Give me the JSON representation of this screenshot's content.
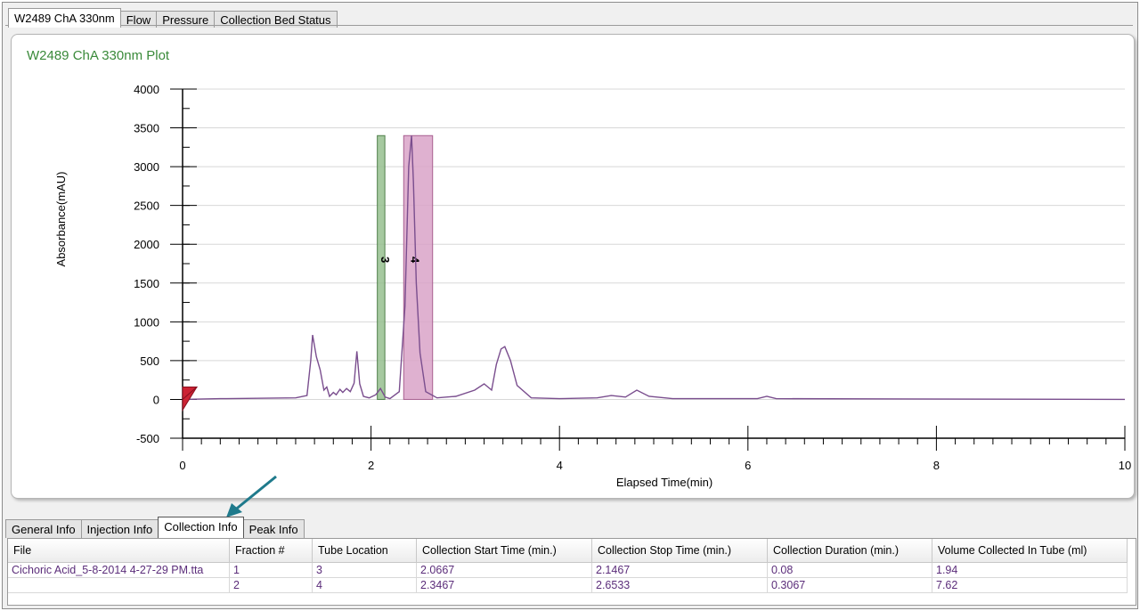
{
  "top_tabs": [
    {
      "label": "W2489 ChA 330nm",
      "active": true
    },
    {
      "label": "Flow",
      "active": false
    },
    {
      "label": "Pressure",
      "active": false
    },
    {
      "label": "Collection Bed Status",
      "active": false
    }
  ],
  "plot": {
    "title": "W2489 ChA 330nm Plot"
  },
  "chart_data": {
    "type": "line",
    "title": "W2489 ChA 330nm Plot",
    "xlabel": "Elapsed Time(min)",
    "ylabel": "Absorbance(mAU)",
    "xlim": [
      0,
      10
    ],
    "ylim": [
      -500,
      4000
    ],
    "x_ticks": [
      "0",
      "2",
      "4",
      "6",
      "8",
      "10"
    ],
    "y_ticks": [
      "4000",
      "3500",
      "3000",
      "2500",
      "2000",
      "1500",
      "1000",
      "500",
      "0",
      "-500"
    ],
    "grid": true,
    "line_color": "#7a4e8e",
    "series": [
      {
        "x": [
          0,
          0.4,
          1.2,
          1.32,
          1.36,
          1.38,
          1.42,
          1.46,
          1.5,
          1.53,
          1.56,
          1.6,
          1.63,
          1.67,
          1.7,
          1.74,
          1.78,
          1.82,
          1.85,
          1.88,
          1.92,
          1.98,
          2.05,
          2.1,
          2.15,
          2.2,
          2.3,
          2.36,
          2.4,
          2.43,
          2.45,
          2.48,
          2.52,
          2.58,
          2.7,
          2.9,
          3.1,
          3.2,
          3.28,
          3.33,
          3.38,
          3.42,
          3.48,
          3.55,
          3.7,
          4.0,
          4.4,
          4.55,
          4.7,
          4.82,
          4.95,
          5.2,
          6.1,
          6.2,
          6.3,
          10.0
        ],
        "y": [
          0,
          10,
          20,
          50,
          500,
          830,
          550,
          380,
          120,
          160,
          40,
          90,
          60,
          130,
          90,
          140,
          100,
          210,
          620,
          200,
          40,
          20,
          60,
          140,
          30,
          10,
          100,
          1200,
          3000,
          3400,
          2800,
          1500,
          600,
          100,
          20,
          40,
          120,
          200,
          120,
          450,
          650,
          680,
          500,
          180,
          20,
          10,
          20,
          50,
          30,
          120,
          40,
          10,
          10,
          40,
          10,
          0
        ]
      }
    ],
    "fractions": [
      {
        "label": "3",
        "start": 2.0667,
        "stop": 2.1467,
        "height": 3400,
        "color": "#96c08f"
      },
      {
        "label": "4",
        "start": 2.3467,
        "stop": 2.6533,
        "height": 3400,
        "color": "#d9a3c8"
      }
    ]
  },
  "bottom_tabs": [
    {
      "label": "General Info",
      "active": false
    },
    {
      "label": "Injection Info",
      "active": false
    },
    {
      "label": "Collection Info",
      "active": true
    },
    {
      "label": "Peak Info",
      "active": false
    }
  ],
  "table": {
    "columns": [
      "File",
      "Fraction #",
      "Tube Location",
      "Collection Start Time (min.)",
      "Collection Stop Time (min.)",
      "Collection Duration (min.)",
      "Volume Collected In Tube (ml)"
    ],
    "rows": [
      [
        "Cichoric Acid_5-8-2014 4-27-29 PM.tta",
        "1",
        "3",
        "2.0667",
        "2.1467",
        "0.08",
        "1.94"
      ],
      [
        "",
        "2",
        "4",
        "2.3467",
        "2.6533",
        "0.3067",
        "7.62"
      ]
    ]
  },
  "colors": {
    "accent_green": "#3a8a3a",
    "trace": "#7a4e8e",
    "arrow": "#1f7a8c",
    "marker_red": "#cc2233"
  }
}
